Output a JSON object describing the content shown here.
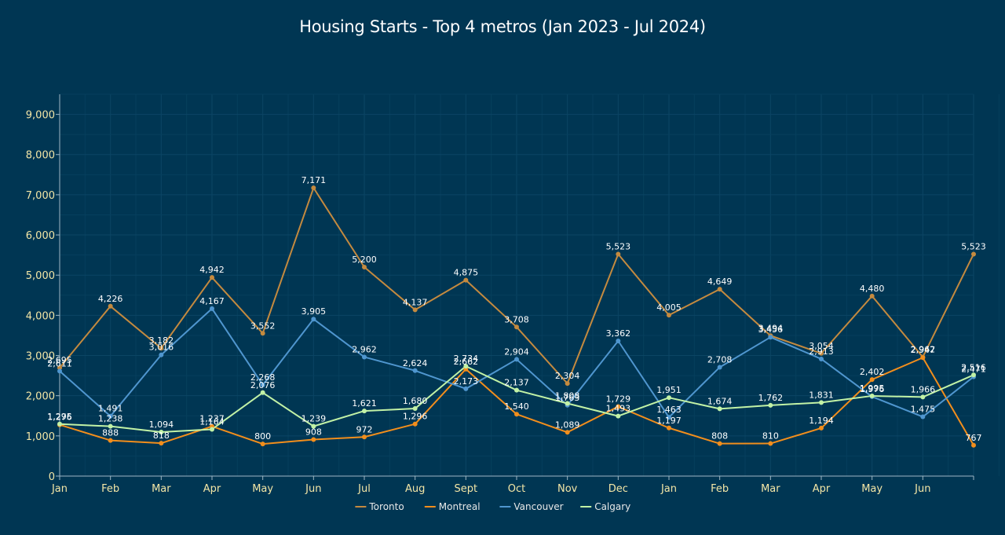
{
  "chart_data": {
    "type": "line",
    "title": "Housing Starts - Top 4 metros (Jan 2023 - Jul 2024)",
    "categories": [
      "Jan",
      "Feb",
      "Mar",
      "Apr",
      "May",
      "Jun",
      "Jul",
      "Aug",
      "Sept",
      "Oct",
      "Nov",
      "Dec",
      "Jan",
      "Feb",
      "Mar",
      "Apr",
      "May",
      "Jun",
      ""
    ],
    "ylim": [
      0,
      9500
    ],
    "yticks": [
      "0",
      "1,000",
      "2,000",
      "3,000",
      "4,000",
      "5,000",
      "6,000",
      "7,000",
      "8,000",
      "9,000"
    ],
    "ytick_values": [
      0,
      1000,
      2000,
      3000,
      4000,
      5000,
      6000,
      7000,
      8000,
      9000
    ],
    "grid": true,
    "legend_position": "bottom",
    "series": [
      {
        "name": "Toronto",
        "color": "#c48a3f",
        "values": [
          2695,
          4226,
          3182,
          4942,
          3552,
          7171,
          5200,
          4137,
          4875,
          3708,
          2304,
          5523,
          4005,
          4649,
          3494,
          3054,
          4480,
          2962,
          5523
        ],
        "labels": [
          "2,695",
          "4,226",
          "3,182",
          "4,942",
          "3,552",
          "7,171",
          "5,200",
          "4,137",
          "4,875",
          "3,708",
          "2,304",
          "5,523",
          "4,005",
          "4,649",
          "3,494",
          "3,054",
          "4,480",
          "2,962",
          "5,523"
        ]
      },
      {
        "name": "Montreal",
        "color": "#f28e1c",
        "values": [
          1276,
          888,
          818,
          1237,
          800,
          908,
          972,
          1296,
          2662,
          1540,
          1089,
          1729,
          1197,
          808,
          810,
          1194,
          2402,
          2947,
          767
        ],
        "labels": [
          "1,276",
          "888",
          "818",
          "1,237",
          "800",
          "908",
          "972",
          "1,296",
          "2,662",
          "1,540",
          "1,089",
          "1,729",
          "1,197",
          "808",
          "810",
          "1,194",
          "2,402",
          "2,947",
          "767"
        ]
      },
      {
        "name": "Vancouver",
        "color": "#4f96cf",
        "values": [
          2611,
          1491,
          3016,
          4167,
          2268,
          3905,
          2962,
          2624,
          2173,
          2904,
          1763,
          3362,
          1463,
          2708,
          3456,
          2913,
          1976,
          1475,
          2471
        ],
        "labels": [
          "2,611",
          "1,491",
          "3,016",
          "4,167",
          "2,268",
          "3,905",
          "2,962",
          "2,624",
          "2,173",
          "2,904",
          "1,763",
          "3,362",
          "1,463",
          "2,708",
          "3,456",
          "2,913",
          "1,976",
          "1,475",
          "2,471"
        ]
      },
      {
        "name": "Calgary",
        "color": "#c2f2a6",
        "values": [
          1295,
          1238,
          1094,
          1164,
          2076,
          1239,
          1621,
          1680,
          2734,
          2137,
          1808,
          1493,
          1951,
          1674,
          1762,
          1831,
          1995,
          1966,
          2516
        ],
        "labels": [
          "1,295",
          "1,238",
          "1,094",
          "1,164",
          "2,076",
          "1,239",
          "1,621",
          "1,680",
          "2,734",
          "2,137",
          "1,808",
          "1,493",
          "1,951",
          "1,674",
          "1,762",
          "1,831",
          "1,995",
          "1,966",
          "2,516"
        ]
      }
    ]
  }
}
